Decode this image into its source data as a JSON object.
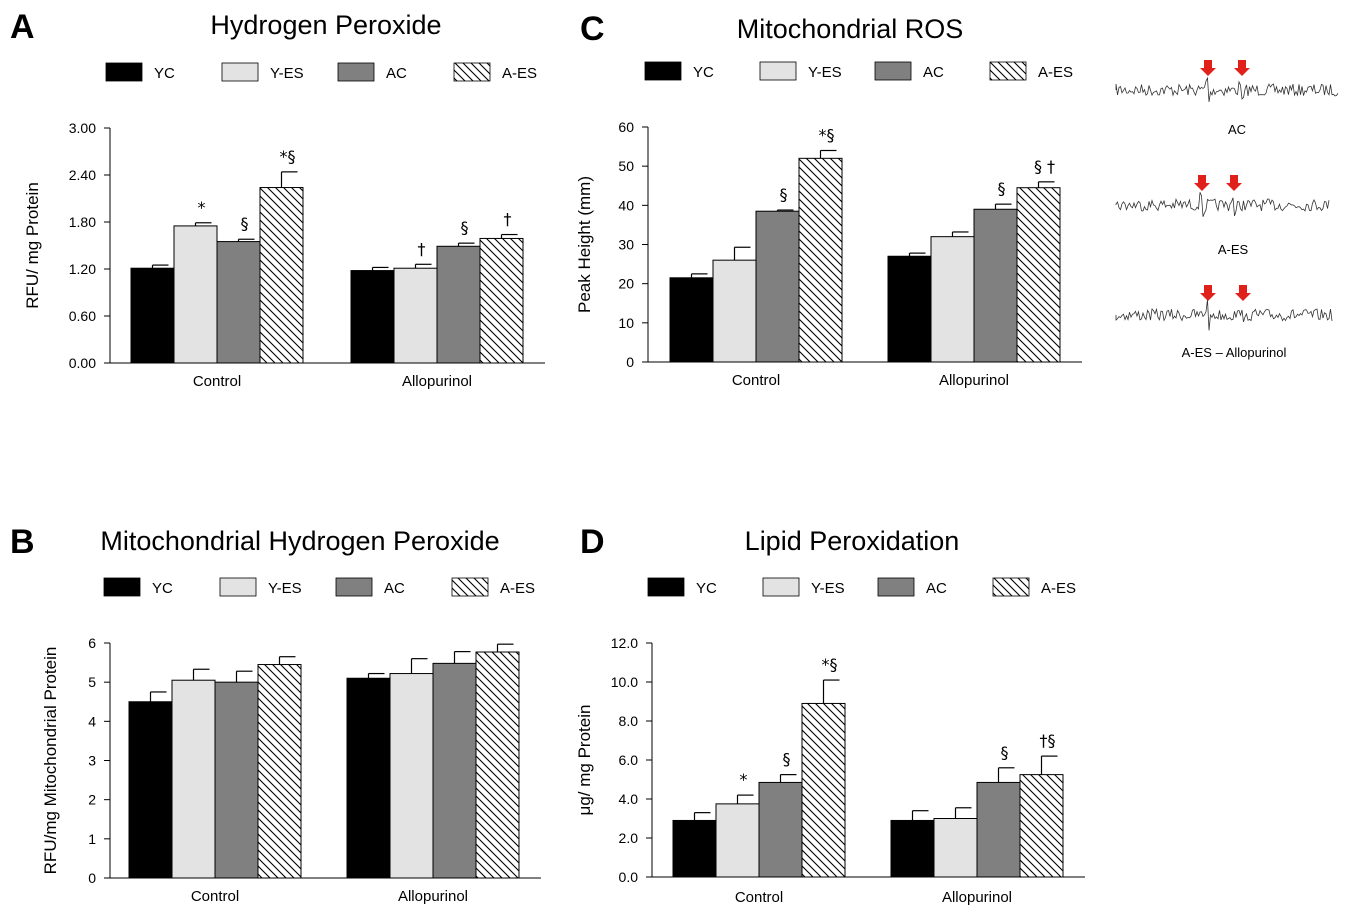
{
  "colors": {
    "YC": "#000000",
    "Y-ES": "#e3e3e3",
    "AC": "#808080",
    "A-ES": "hatch",
    "arrow": "#e0201b"
  },
  "chart_data": [
    {
      "panel": "A",
      "type": "bar",
      "title": "Hydrogen Peroxide",
      "ylabel": "RFU/ mg Protein",
      "xlabel": "",
      "categories": [
        "Control",
        "Allopurinol"
      ],
      "legend": [
        "YC",
        "Y-ES",
        "AC",
        "A-ES"
      ],
      "ylim": [
        0,
        3.0
      ],
      "yticks": [
        "0.00",
        "0.60",
        "1.20",
        "1.80",
        "2.40",
        "3.00"
      ],
      "series": [
        {
          "name": "YC",
          "values": [
            1.21,
            1.18
          ],
          "errors": [
            0.04,
            0.04
          ],
          "annotations": [
            "",
            ""
          ]
        },
        {
          "name": "Y-ES",
          "values": [
            1.75,
            1.21
          ],
          "errors": [
            0.04,
            0.05
          ],
          "annotations": [
            "*",
            "†"
          ]
        },
        {
          "name": "AC",
          "values": [
            1.55,
            1.49
          ],
          "errors": [
            0.03,
            0.04
          ],
          "annotations": [
            "§",
            "§"
          ]
        },
        {
          "name": "A-ES",
          "values": [
            2.24,
            1.59
          ],
          "errors": [
            0.2,
            0.05
          ],
          "annotations": [
            "*§",
            "†"
          ]
        }
      ]
    },
    {
      "panel": "B",
      "type": "bar",
      "title": "Mitochondrial Hydrogen Peroxide",
      "ylabel": "RFU/mg Mitochondrial Protein",
      "xlabel": "",
      "categories": [
        "Control",
        "Allopurinol"
      ],
      "legend": [
        "YC",
        "Y-ES",
        "AC",
        "A-ES"
      ],
      "ylim": [
        0,
        6
      ],
      "yticks": [
        "0",
        "1",
        "2",
        "3",
        "4",
        "5",
        "6"
      ],
      "series": [
        {
          "name": "YC",
          "values": [
            4.5,
            5.1
          ],
          "errors": [
            0.25,
            0.12
          ],
          "annotations": [
            "",
            ""
          ]
        },
        {
          "name": "Y-ES",
          "values": [
            5.05,
            5.22
          ],
          "errors": [
            0.28,
            0.38
          ],
          "annotations": [
            "",
            ""
          ]
        },
        {
          "name": "AC",
          "values": [
            5.0,
            5.48
          ],
          "errors": [
            0.28,
            0.3
          ],
          "annotations": [
            "",
            ""
          ]
        },
        {
          "name": "A-ES",
          "values": [
            5.45,
            5.77
          ],
          "errors": [
            0.2,
            0.2
          ],
          "annotations": [
            "",
            ""
          ]
        }
      ]
    },
    {
      "panel": "C",
      "type": "bar",
      "title": "Mitochondrial ROS",
      "ylabel": "Peak Height (mm)",
      "xlabel": "",
      "categories": [
        "Control",
        "Allopurinol"
      ],
      "legend": [
        "YC",
        "Y-ES",
        "AC",
        "A-ES"
      ],
      "ylim": [
        0,
        60
      ],
      "yticks": [
        "0",
        "10",
        "20",
        "30",
        "40",
        "50",
        "60"
      ],
      "series": [
        {
          "name": "YC",
          "values": [
            21.5,
            27
          ],
          "errors": [
            1,
            0.8
          ],
          "annotations": [
            "",
            ""
          ]
        },
        {
          "name": "Y-ES",
          "values": [
            26,
            32
          ],
          "errors": [
            3.3,
            1.2
          ],
          "annotations": [
            "",
            ""
          ]
        },
        {
          "name": "AC",
          "values": [
            38.5,
            39
          ],
          "errors": [
            0.3,
            1.3
          ],
          "annotations": [
            "§",
            "§"
          ]
        },
        {
          "name": "A-ES",
          "values": [
            52,
            44.5
          ],
          "errors": [
            2,
            1.5
          ],
          "annotations": [
            "*§",
            "§ †"
          ]
        }
      ]
    },
    {
      "panel": "D",
      "type": "bar",
      "title": "Lipid Peroxidation",
      "ylabel": "μg/ mg Protein",
      "xlabel": "",
      "categories": [
        "Control",
        "Allopurinol"
      ],
      "legend": [
        "YC",
        "Y-ES",
        "AC",
        "A-ES"
      ],
      "ylim": [
        0,
        12
      ],
      "yticks": [
        "0.0",
        "2.0",
        "4.0",
        "6.0",
        "8.0",
        "10.0",
        "12.0"
      ],
      "series": [
        {
          "name": "YC",
          "values": [
            2.9,
            2.9
          ],
          "errors": [
            0.4,
            0.5
          ],
          "annotations": [
            "",
            ""
          ]
        },
        {
          "name": "Y-ES",
          "values": [
            3.75,
            3.0
          ],
          "errors": [
            0.45,
            0.55
          ],
          "annotations": [
            "*",
            ""
          ]
        },
        {
          "name": "AC",
          "values": [
            4.85,
            4.85
          ],
          "errors": [
            0.4,
            0.75
          ],
          "annotations": [
            "§",
            "§"
          ]
        },
        {
          "name": "A-ES",
          "values": [
            8.9,
            5.25
          ],
          "errors": [
            1.2,
            0.95
          ],
          "annotations": [
            "*§",
            "†§"
          ]
        }
      ]
    }
  ],
  "esr": {
    "traces": [
      {
        "label": "AC"
      },
      {
        "label": "A-ES"
      },
      {
        "label": "A-ES – Allopurinol"
      }
    ]
  }
}
